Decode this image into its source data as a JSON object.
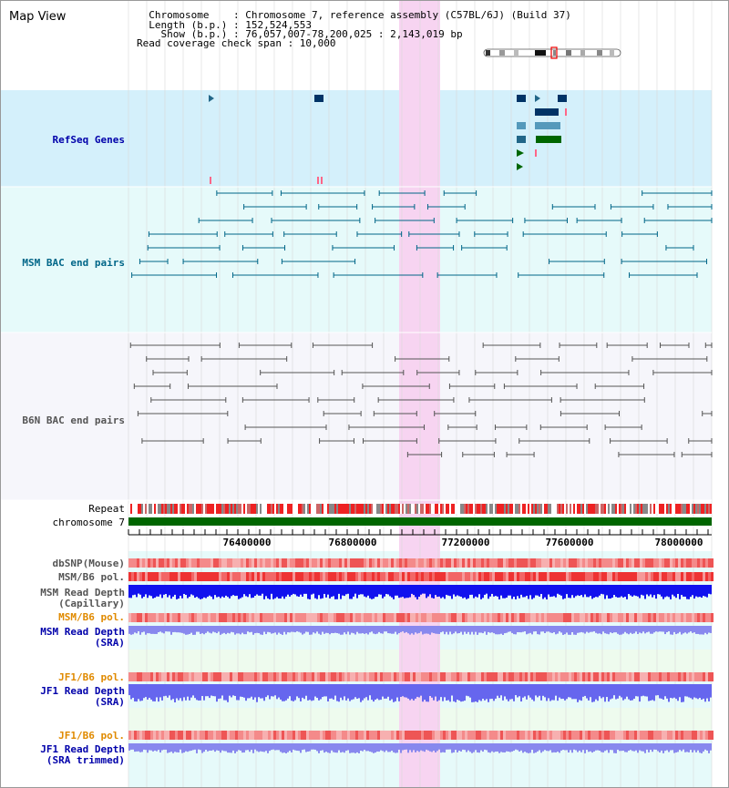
{
  "title": "Map View",
  "header": {
    "line1": "  Chromosome    : Chromosome 7, reference assembly (C57BL/6J) (Build 37)",
    "line2": "  Length (b.p.) : 152,524,553",
    "line3": "    Show (b.p.) : 76,057,007-78,200,025 : 2,143,019 bp",
    "line4": "Read coverage check span : 10,000"
  },
  "tracks": {
    "refseq": "RefSeq Genes",
    "msm_bac": "MSM BAC end pairs",
    "b6n_bac": "B6N BAC end pairs",
    "repeat": "Repeat",
    "chromosome": "chromosome 7",
    "dbsnp": "dbSNP(Mouse)",
    "msm_b6_pol_1": "MSM/B6 pol.",
    "msm_read_depth_cap_1": "MSM Read Depth",
    "msm_read_depth_cap_2": "(Capillary)",
    "msm_b6_pol_2": "MSM/B6 pol.",
    "msm_read_depth_sra_1": "MSM Read Depth",
    "msm_read_depth_sra_2": "(SRA)",
    "jf1_b6_pol_1": "JF1/B6 pol.",
    "jf1_read_depth_sra_1": "JF1 Read Depth",
    "jf1_read_depth_sra_2": "(SRA)",
    "jf1_b6_pol_2": "JF1/B6 pol.",
    "jf1_read_depth_trim_1": "JF1 Read Depth",
    "jf1_read_depth_trim_2": "(SRA trimmed)"
  },
  "ruler": {
    "ticks": [
      "76400000",
      "76800000",
      "77200000",
      "77600000",
      "78000000"
    ]
  },
  "colors": {
    "refseq_label": "#0000aa",
    "msm_label": "#006688",
    "b6n_label": "#555555",
    "orange_label": "#e08a00",
    "blue_label": "#0000aa",
    "highlight": "#f7d4f1",
    "refseq_bg": "#d4f0fb",
    "bac_bg": "#e6fafa",
    "chromosome_bar": "#006600"
  }
}
